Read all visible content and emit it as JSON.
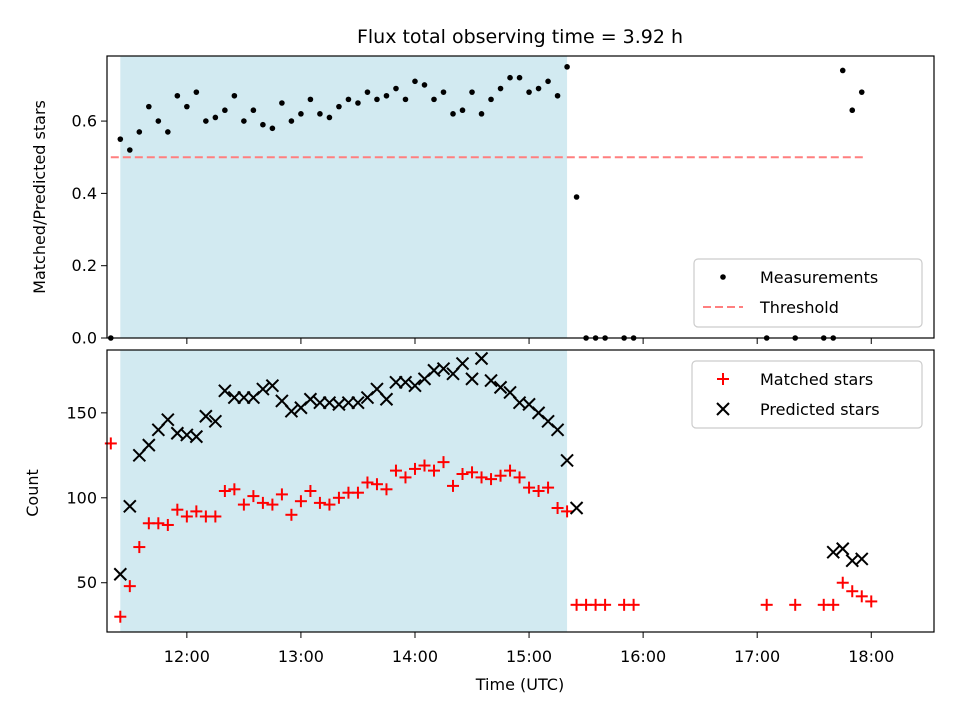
{
  "chart_data": {
    "title": "Flux total observing time = 3.92 h",
    "xlabel": "Time (UTC)",
    "x_ticks": [
      "12:00",
      "13:00",
      "14:00",
      "15:00",
      "16:00",
      "17:00",
      "18:00"
    ],
    "x_range": [
      "11:18",
      "18:33"
    ],
    "shaded_interval": {
      "start": "11:25",
      "end": "15:20",
      "color": "#add8e6"
    },
    "panels": [
      {
        "type": "scatter",
        "ylabel": "Matched/Predicted stars",
        "ylim": [
          0,
          0.78
        ],
        "y_ticks": [
          "0.0",
          "0.2",
          "0.4",
          "0.6"
        ],
        "legend": {
          "position": "lower-right",
          "entries": [
            "Measurements",
            "Threshold"
          ]
        },
        "threshold": {
          "name": "Threshold",
          "value": 0.5,
          "x_start": "11:20",
          "x_end": "17:57",
          "color": "#ff7f7f"
        },
        "series": [
          {
            "name": "Measurements",
            "marker": "dot",
            "color": "#000000",
            "x": [
              "11:20",
              "11:25",
              "11:30",
              "11:35",
              "11:40",
              "11:45",
              "11:50",
              "11:55",
              "12:00",
              "12:05",
              "12:10",
              "12:15",
              "12:20",
              "12:25",
              "12:30",
              "12:35",
              "12:40",
              "12:45",
              "12:50",
              "12:55",
              "13:00",
              "13:05",
              "13:10",
              "13:15",
              "13:20",
              "13:25",
              "13:30",
              "13:35",
              "13:40",
              "13:45",
              "13:50",
              "13:55",
              "14:00",
              "14:05",
              "14:10",
              "14:15",
              "14:20",
              "14:25",
              "14:30",
              "14:35",
              "14:40",
              "14:45",
              "14:50",
              "14:55",
              "15:00",
              "15:05",
              "15:10",
              "15:15",
              "15:20",
              "15:25",
              "15:30",
              "15:35",
              "15:40",
              "15:50",
              "15:55",
              "17:05",
              "17:20",
              "17:35",
              "17:40",
              "17:45",
              "17:50",
              "17:55"
            ],
            "y": [
              0.0,
              0.55,
              0.52,
              0.57,
              0.64,
              0.6,
              0.57,
              0.67,
              0.64,
              0.68,
              0.6,
              0.61,
              0.63,
              0.67,
              0.6,
              0.63,
              0.59,
              0.58,
              0.65,
              0.6,
              0.62,
              0.66,
              0.62,
              0.61,
              0.64,
              0.66,
              0.65,
              0.68,
              0.66,
              0.67,
              0.69,
              0.66,
              0.71,
              0.7,
              0.66,
              0.68,
              0.62,
              0.63,
              0.68,
              0.62,
              0.66,
              0.69,
              0.72,
              0.72,
              0.68,
              0.69,
              0.71,
              0.67,
              0.75,
              0.39,
              0.0,
              0.0,
              0.0,
              0.0,
              0.0,
              0.0,
              0.0,
              0.0,
              0.0,
              0.74,
              0.63,
              0.68
            ]
          }
        ]
      },
      {
        "type": "scatter",
        "ylabel": "Count",
        "ylim": [
          21,
          187
        ],
        "y_ticks": [
          "50",
          "100",
          "150"
        ],
        "legend": {
          "position": "top-right",
          "entries": [
            "Matched stars",
            "Predicted stars"
          ]
        },
        "series": [
          {
            "name": "Matched stars",
            "marker": "plus",
            "color": "#ff0000",
            "x": [
              "11:20",
              "11:25",
              "11:30",
              "11:35",
              "11:40",
              "11:45",
              "11:50",
              "11:55",
              "12:00",
              "12:05",
              "12:10",
              "12:15",
              "12:20",
              "12:25",
              "12:30",
              "12:35",
              "12:40",
              "12:45",
              "12:50",
              "12:55",
              "13:00",
              "13:05",
              "13:10",
              "13:15",
              "13:20",
              "13:25",
              "13:30",
              "13:35",
              "13:40",
              "13:45",
              "13:50",
              "13:55",
              "14:00",
              "14:05",
              "14:10",
              "14:15",
              "14:20",
              "14:25",
              "14:30",
              "14:35",
              "14:40",
              "14:45",
              "14:50",
              "14:55",
              "15:00",
              "15:05",
              "15:10",
              "15:15",
              "15:20",
              "15:25",
              "15:30",
              "15:35",
              "15:40",
              "15:50",
              "15:55",
              "17:05",
              "17:20",
              "17:35",
              "17:40",
              "17:45",
              "17:50",
              "17:55",
              "18:00"
            ],
            "y": [
              132,
              30,
              48,
              71,
              85,
              85,
              84,
              93,
              89,
              92,
              89,
              89,
              104,
              105,
              96,
              101,
              97,
              96,
              102,
              90,
              98,
              104,
              97,
              96,
              100,
              103,
              103,
              109,
              108,
              105,
              116,
              112,
              117,
              119,
              116,
              121,
              107,
              114,
              115,
              112,
              111,
              113,
              116,
              112,
              106,
              104,
              106,
              94,
              92,
              37,
              37,
              37,
              37,
              37,
              37,
              37,
              37,
              37,
              37,
              50,
              45,
              42,
              39
            ]
          },
          {
            "name": "Predicted stars",
            "marker": "x",
            "color": "#000000",
            "x": [
              "11:25",
              "11:30",
              "11:35",
              "11:40",
              "11:45",
              "11:50",
              "11:55",
              "12:00",
              "12:05",
              "12:10",
              "12:15",
              "12:20",
              "12:25",
              "12:30",
              "12:35",
              "12:40",
              "12:45",
              "12:50",
              "12:55",
              "13:00",
              "13:05",
              "13:10",
              "13:15",
              "13:20",
              "13:25",
              "13:30",
              "13:35",
              "13:40",
              "13:45",
              "13:50",
              "13:55",
              "14:00",
              "14:05",
              "14:10",
              "14:15",
              "14:20",
              "14:25",
              "14:30",
              "14:35",
              "14:40",
              "14:45",
              "14:50",
              "14:55",
              "15:00",
              "15:05",
              "15:10",
              "15:15",
              "15:20",
              "15:25",
              "17:40",
              "17:45",
              "17:50",
              "17:55"
            ],
            "y": [
              55,
              95,
              125,
              131,
              140,
              146,
              138,
              137,
              136,
              148,
              145,
              163,
              159,
              159,
              159,
              164,
              166,
              157,
              151,
              153,
              158,
              156,
              156,
              155,
              156,
              156,
              159,
              164,
              158,
              168,
              168,
              166,
              170,
              175,
              176,
              173,
              179,
              170,
              182,
              169,
              165,
              162,
              156,
              155,
              150,
              145,
              140,
              122,
              94,
              68,
              70,
              63,
              64
            ]
          }
        ]
      }
    ]
  }
}
